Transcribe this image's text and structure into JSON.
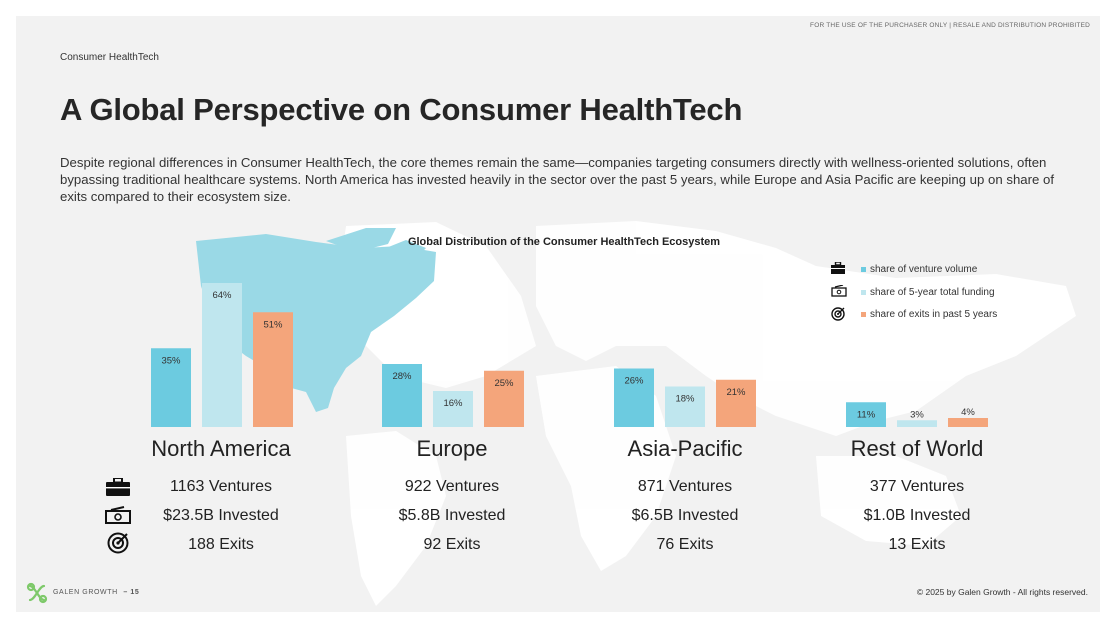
{
  "header": {
    "disclaimer": "FOR THE USE OF THE PURCHASER ONLY | RESALE AND DISTRIBUTION PROHIBITED",
    "section": "Consumer HealthTech",
    "title": "A Global Perspective on Consumer HealthTech",
    "intro": "Despite regional differences in Consumer HealthTech, the core themes remain the same—companies targeting consumers directly with wellness-oriented solutions, often bypassing traditional healthcare systems. North America has invested heavily in the sector over the past 5 years, while Europe and Asia Pacific are keeping up on share of exits compared to their ecosystem size."
  },
  "chart_data": {
    "type": "bar",
    "title": "Global Distribution of the Consumer HealthTech Ecosystem",
    "categories": [
      "North America",
      "Europe",
      "Asia-Pacific",
      "Rest of World"
    ],
    "series": [
      {
        "name": "share of venture volume",
        "values": [
          35,
          28,
          26,
          11
        ],
        "labels": [
          "35%",
          "28%",
          "26%",
          "11%"
        ],
        "color": "#6ccbe0",
        "icon": "briefcase-icon"
      },
      {
        "name": "share of 5-year total funding",
        "values": [
          64,
          16,
          18,
          3
        ],
        "labels": [
          "64%",
          "16%",
          "18%",
          "3%"
        ],
        "color": "#bfe6ee",
        "icon": "money-icon"
      },
      {
        "name": "share of exits in past 5 years",
        "values": [
          51,
          25,
          21,
          4
        ],
        "labels": [
          "51%",
          "25%",
          "21%",
          "4%"
        ],
        "color": "#f4a57b",
        "icon": "target-icon"
      }
    ],
    "unit": "%",
    "legend_position": "top-right",
    "grid": false
  },
  "regions": [
    {
      "name": "North America",
      "ventures": "1163 Ventures",
      "invested": "$23.5B Invested",
      "exits": "188 Exits"
    },
    {
      "name": "Europe",
      "ventures": "922 Ventures",
      "invested": "$5.8B Invested",
      "exits": "92 Exits"
    },
    {
      "name": "Asia-Pacific",
      "ventures": "871 Ventures",
      "invested": "$6.5B Invested",
      "exits": "76 Exits"
    },
    {
      "name": "Rest of World",
      "ventures": "377 Ventures",
      "invested": "$1.0B Invested",
      "exits": "13 Exits"
    }
  ],
  "footer": {
    "brand": "GALEN GROWTH",
    "page": "– 15",
    "copyright": "© 2025 by Galen Growth  - All rights reserved."
  },
  "colors": {
    "background": "#f2f2f2",
    "map_highlight": "#9ad9e6",
    "map_base": "#ffffff",
    "logo": "#7ec96a"
  }
}
